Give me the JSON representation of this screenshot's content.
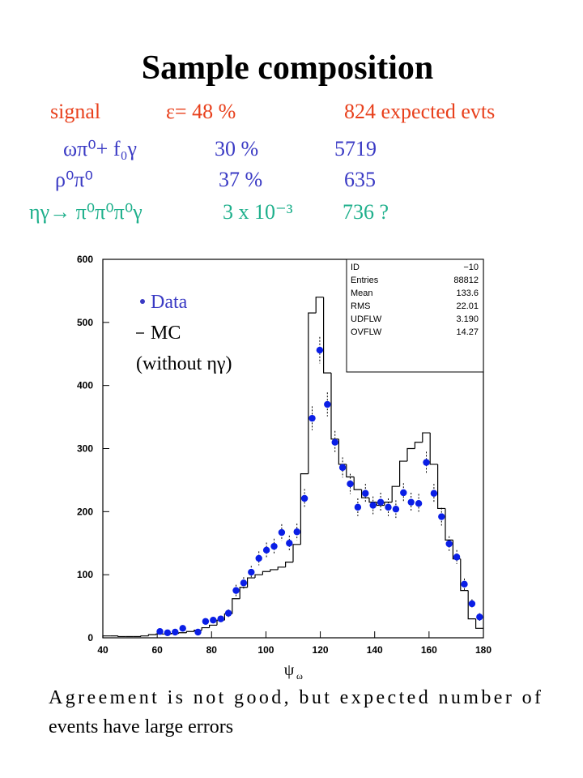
{
  "header": {
    "title": "Sample composition",
    "rows": [
      {
        "color": "#e8401c",
        "cells": [
          "signal",
          "ε=   48 %",
          "824  expected  evts"
        ]
      },
      {
        "color": "#3a3ac4",
        "cells": [
          "ωπ⁰+ f₀γ",
          "30 %",
          "5719"
        ]
      },
      {
        "color": "#3a3ac4",
        "cells": [
          "ρ⁰π⁰",
          "37 %",
          "635"
        ]
      },
      {
        "color": "#1fb08c",
        "cells": [
          "ηγ→ π⁰π⁰π⁰γ",
          "3 x 10⁻³",
          "736 ?"
        ]
      }
    ]
  },
  "chart_data": {
    "type": "scatter",
    "x_label": "ψ",
    "x_label_sub": "ω",
    "xlim": [
      40,
      180
    ],
    "ylim": [
      0,
      600
    ],
    "xticks": [
      40,
      60,
      80,
      100,
      120,
      140,
      160,
      180
    ],
    "yticks": [
      0,
      100,
      200,
      300,
      400,
      500,
      600
    ],
    "legend_note": "(without ηγ)",
    "series": [
      {
        "name": "Data",
        "color": "#0a1ee6",
        "x": [
          61,
          63.8,
          66.6,
          69.4,
          75,
          77.8,
          80.6,
          83.4,
          86.2,
          89,
          91.8,
          94.6,
          97.4,
          100.2,
          103,
          105.8,
          108.6,
          111.4,
          114.2,
          117,
          119.8,
          122.6,
          125.4,
          128.2,
          131,
          133.8,
          136.6,
          139.4,
          142.2,
          145,
          147.8,
          150.6,
          153.4,
          156.2,
          159,
          161.8,
          164.6,
          167.4,
          170.2,
          173,
          175.8,
          178.6
        ],
        "values": [
          10,
          8,
          9,
          15,
          9,
          26,
          28,
          30,
          39,
          75,
          87,
          104,
          126,
          139,
          145,
          167,
          150,
          168,
          221,
          348,
          456,
          370,
          310,
          270,
          244,
          207,
          229,
          210,
          215,
          207,
          204,
          230,
          215,
          213,
          278,
          229,
          192,
          149,
          128,
          85,
          54,
          33
        ],
        "errors": [
          3,
          3,
          3,
          4,
          3,
          5,
          5,
          5,
          6,
          9,
          9,
          10,
          11,
          12,
          12,
          13,
          12,
          13,
          15,
          19,
          21,
          19,
          18,
          16,
          16,
          14,
          15,
          14,
          15,
          14,
          14,
          15,
          15,
          15,
          17,
          15,
          14,
          12,
          11,
          9,
          7,
          6
        ]
      }
    ],
    "histogram": {
      "name": "MC",
      "color": "#000000",
      "bins": [
        40,
        42.8,
        45.6,
        48.4,
        51.2,
        54,
        56.8,
        59.6,
        62.4,
        65.2,
        68,
        70.8,
        73.6,
        76.4,
        79.2,
        82,
        84.8,
        87.6,
        90.4,
        93.2,
        96,
        98.8,
        101.6,
        104.4,
        107.2,
        110,
        112.8,
        115.6,
        118.4,
        121.2,
        124,
        126.8,
        129.6,
        132.4,
        135.2,
        138,
        140.8,
        143.6,
        146.4,
        149.2,
        152,
        154.8,
        157.6,
        160.4,
        163.2,
        166,
        168.8,
        171.6,
        174.4,
        177.2,
        180
      ],
      "values": [
        3,
        3,
        2,
        2,
        2,
        3,
        5,
        6,
        6,
        7,
        8,
        10,
        12,
        16,
        20,
        28,
        38,
        62,
        80,
        95,
        100,
        105,
        108,
        112,
        120,
        148,
        260,
        515,
        540,
        420,
        315,
        275,
        255,
        235,
        222,
        215,
        210,
        215,
        240,
        280,
        300,
        310,
        325,
        275,
        205,
        155,
        125,
        75,
        30,
        15
      ]
    },
    "stats": {
      "labels": [
        "ID",
        "Entries",
        "Mean",
        "RMS",
        "UDFLW",
        "OVFLW"
      ],
      "values": [
        "−10",
        "88812",
        "133.6",
        "22.01",
        "3.190",
        "14.27"
      ]
    }
  },
  "footer": [
    "Agreement is not good, but expected number of",
    "events have large errors"
  ]
}
